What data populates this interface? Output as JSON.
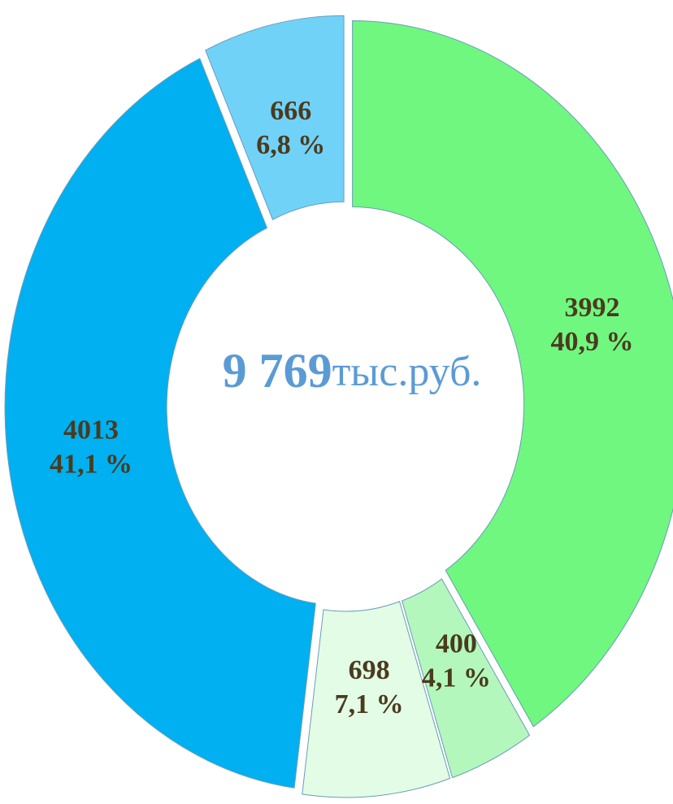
{
  "chart_data": {
    "type": "donut",
    "center_value": "9 769",
    "center_unit": "тыс.руб.",
    "categories": [
      null,
      null,
      null,
      null,
      null
    ],
    "values": [
      3992,
      400,
      698,
      4013,
      666
    ],
    "percents": [
      40.9,
      4.1,
      7.1,
      41.1,
      6.8
    ],
    "percent_labels": [
      "40,9 %",
      "4,1 %",
      "7,1 %",
      "41,1 %",
      "6,8 %"
    ],
    "colors": [
      "#70f77f",
      "#b3f7bd",
      "#e3fce5",
      "#00b0f0",
      "#71d2f7"
    ]
  }
}
